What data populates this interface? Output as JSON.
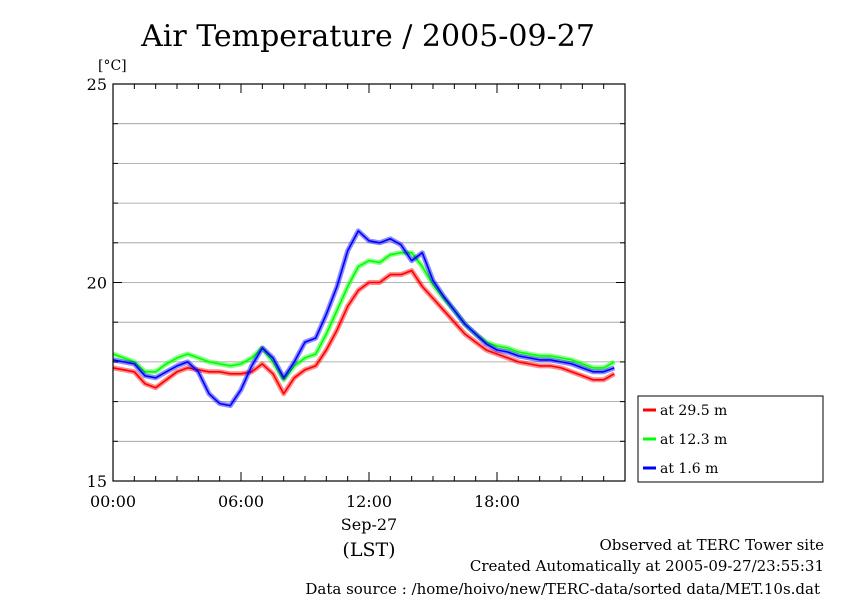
{
  "chart_data": {
    "type": "line",
    "title": "Air Temperature / 2005-09-27",
    "ylabel": "[°C]",
    "ylim": [
      15,
      25
    ],
    "yticks": [
      15,
      20,
      25
    ],
    "xlim": [
      0,
      24
    ],
    "xticks": [
      {
        "value": 0,
        "label": "00:00"
      },
      {
        "value": 6,
        "label": "06:00"
      },
      {
        "value": 12,
        "label": "12:00"
      },
      {
        "value": 18,
        "label": "18:00"
      }
    ],
    "xdate_label": "Sep-27",
    "xunit_label": "(LST)",
    "grid": true,
    "legend_position": "right",
    "x": [
      0.0,
      0.5,
      1.0,
      1.5,
      2.0,
      2.5,
      3.0,
      3.5,
      4.0,
      4.5,
      5.0,
      5.5,
      6.0,
      6.5,
      7.0,
      7.5,
      8.0,
      8.5,
      9.0,
      9.5,
      10.0,
      10.5,
      11.0,
      11.5,
      12.0,
      12.5,
      13.0,
      13.5,
      14.0,
      14.5,
      15.0,
      15.5,
      16.0,
      16.5,
      17.0,
      17.5,
      18.0,
      18.5,
      19.0,
      19.5,
      20.0,
      20.5,
      21.0,
      21.5,
      22.0,
      22.5,
      23.0,
      23.5
    ],
    "series": [
      {
        "name": "at 29.5 m",
        "color": "#ff0000",
        "values": [
          17.85,
          17.8,
          17.75,
          17.45,
          17.35,
          17.55,
          17.75,
          17.85,
          17.8,
          17.75,
          17.75,
          17.7,
          17.7,
          17.75,
          17.95,
          17.7,
          17.2,
          17.6,
          17.8,
          17.9,
          18.3,
          18.8,
          19.4,
          19.8,
          20.0,
          20.0,
          20.2,
          20.2,
          20.3,
          19.9,
          19.6,
          19.3,
          19.0,
          18.7,
          18.5,
          18.3,
          18.2,
          18.1,
          18.0,
          17.95,
          17.9,
          17.9,
          17.85,
          17.75,
          17.65,
          17.55,
          17.55,
          17.7
        ]
      },
      {
        "name": "at 12.3 m",
        "color": "#00ff00",
        "values": [
          18.2,
          18.1,
          18.0,
          17.75,
          17.75,
          17.95,
          18.1,
          18.2,
          18.1,
          18.0,
          17.95,
          17.9,
          17.95,
          18.1,
          18.35,
          18.0,
          17.55,
          17.9,
          18.1,
          18.2,
          18.7,
          19.3,
          19.9,
          20.4,
          20.55,
          20.5,
          20.7,
          20.75,
          20.75,
          20.4,
          19.95,
          19.6,
          19.3,
          18.95,
          18.7,
          18.5,
          18.4,
          18.35,
          18.25,
          18.2,
          18.15,
          18.15,
          18.1,
          18.05,
          17.95,
          17.85,
          17.85,
          18.0
        ]
      },
      {
        "name": "at 1.6 m",
        "color": "#0000ff",
        "values": [
          18.05,
          18.0,
          17.95,
          17.65,
          17.6,
          17.75,
          17.9,
          18.0,
          17.75,
          17.2,
          16.95,
          16.9,
          17.3,
          17.9,
          18.35,
          18.1,
          17.6,
          18.0,
          18.5,
          18.6,
          19.2,
          19.9,
          20.8,
          21.3,
          21.05,
          21.0,
          21.1,
          20.95,
          20.55,
          20.75,
          20.05,
          19.65,
          19.3,
          18.95,
          18.7,
          18.45,
          18.3,
          18.25,
          18.15,
          18.1,
          18.05,
          18.05,
          18.0,
          17.95,
          17.85,
          17.75,
          17.75,
          17.85
        ]
      }
    ]
  },
  "footer": {
    "line1": "Observed at TERC Tower site",
    "line2": "Created Automatically at 2005-09-27/23:55:31",
    "line3": "Data source : /home/hoivo/new/TERC-data/sorted  data/MET.10s.dat"
  }
}
